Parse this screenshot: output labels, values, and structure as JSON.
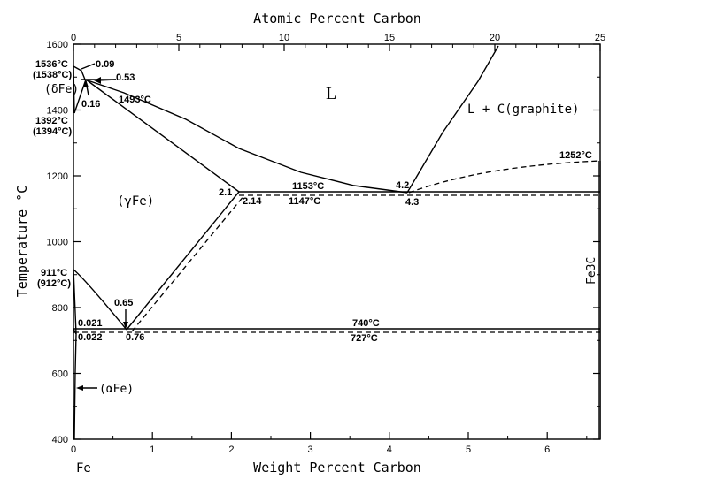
{
  "axes": {
    "x_bottom_label": "Weight Percent Carbon",
    "x_top_label": "Atomic Percent Carbon",
    "y_label": "Temperature °C",
    "x_bottom_ticks": [
      "0",
      "1",
      "2",
      "3",
      "4",
      "5",
      "6"
    ],
    "x_top_ticks": [
      "0",
      "5",
      "10",
      "15",
      "20",
      "25"
    ],
    "y_ticks": [
      "400",
      "600",
      "800",
      "1000",
      "1200",
      "1400",
      "1600"
    ],
    "x_bottom_left_label": "Fe"
  },
  "regions": {
    "liquid": "L",
    "liquid_graphite": "L + C(graphite)",
    "gamma": "(γFe)",
    "delta": "(δFe)",
    "alpha": "(αFe)",
    "fe3c": "Fe3C"
  },
  "labels": {
    "t1536": "1536°C",
    "t1538": "(1538°C)",
    "c009": "0.09",
    "c053": "0.53",
    "c016": "0.16",
    "t1493": "1493°C",
    "t1392": "1392°C",
    "t1394": "(1394°C)",
    "t911": "911°C",
    "t912": "(912°C)",
    "c21": "2.1",
    "c214": "2.14",
    "t1153": "1153°C",
    "t1147": "1147°C",
    "c42": "4.2",
    "c43": "4.3",
    "t1252": "1252°C",
    "c065": "0.65",
    "c076": "0.76",
    "c0021": "0.021",
    "c0022": "0.022",
    "t740": "740°C",
    "t727": "727°C"
  }
}
